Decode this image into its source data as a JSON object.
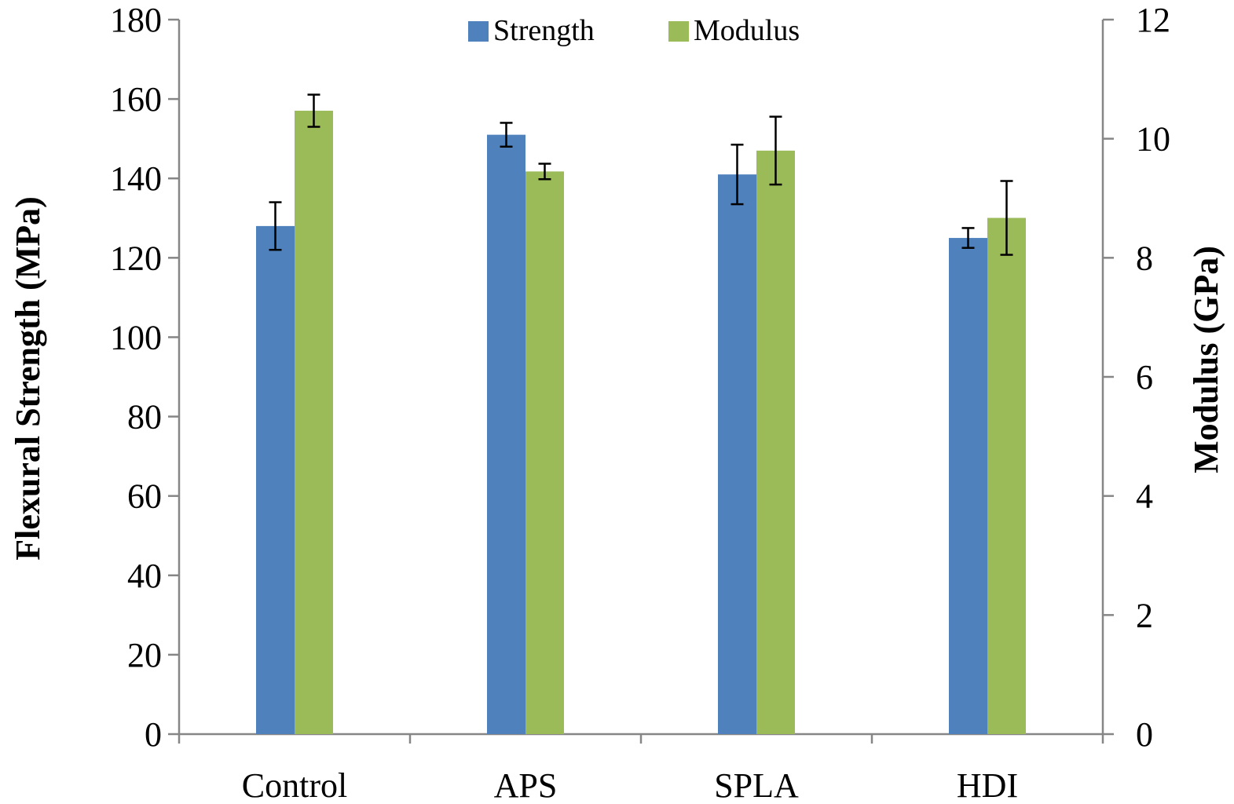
{
  "chart_data": {
    "type": "bar",
    "title": "",
    "categories": [
      "Control",
      "APS",
      "SPLA",
      "HDI"
    ],
    "xlabel": "",
    "ylabel": "Flexural Strength (MPa)",
    "y2label": "Modulus (GPa)",
    "ylim": [
      0,
      180
    ],
    "y2lim": [
      0,
      12
    ],
    "yticks": [
      "0",
      "20",
      "40",
      "60",
      "80",
      "100",
      "120",
      "140",
      "160",
      "180"
    ],
    "y2ticks": [
      "0",
      "2",
      "4",
      "6",
      "8",
      "10",
      "12"
    ],
    "legend_position": "top-center",
    "grid": false,
    "series": [
      {
        "name": "Strength",
        "axis": "left",
        "color": "#4f81bd",
        "values": [
          128,
          151,
          141,
          125
        ],
        "errors": [
          6,
          3,
          7.5,
          2.5
        ]
      },
      {
        "name": "Modulus",
        "axis": "right",
        "color": "#9bbb59",
        "values": [
          10.47,
          9.45,
          9.8,
          8.67
        ],
        "errors": [
          0.27,
          0.13,
          0.57,
          0.62
        ]
      }
    ]
  }
}
